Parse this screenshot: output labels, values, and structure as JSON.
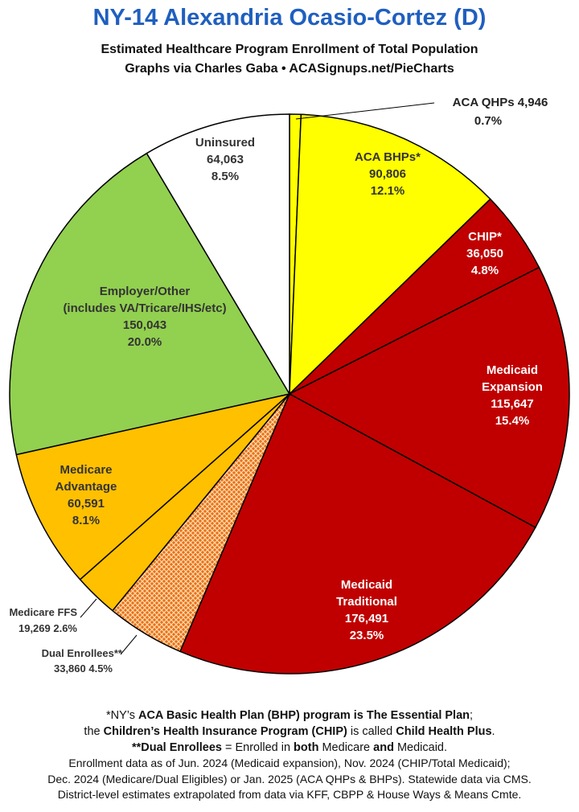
{
  "title": "NY-14 Alexandria Ocasio-Cortez (D)",
  "subtitle_line1": "Estimated Healthcare Program Enrollment of Total Population",
  "subtitle_line2": "Graphs via Charles Gaba  •  ACASignups.net/PieCharts",
  "chart_data": {
    "type": "pie",
    "title": "NY-14 Alexandria Ocasio-Cortez (D)",
    "slices": [
      {
        "label": "ACA QHPs",
        "value": 4946,
        "value_text": "4,946",
        "percent": "0.7%",
        "color": "#ffff00"
      },
      {
        "label": "ACA BHPs*",
        "value": 90806,
        "value_text": "90,806",
        "percent": "12.1%",
        "color": "#ffff00"
      },
      {
        "label": "CHIP*",
        "value": 36050,
        "value_text": "36,050",
        "percent": "4.8%",
        "color": "#c00000"
      },
      {
        "label": "Medicaid Expansion",
        "value": 115647,
        "value_text": "115,647",
        "percent": "15.4%",
        "color": "#c00000"
      },
      {
        "label": "Medicaid Traditional",
        "value": 176491,
        "value_text": "176,491",
        "percent": "23.5%",
        "color": "#c00000"
      },
      {
        "label": "Dual Enrollees**",
        "value": 33860,
        "value_text": "33,860",
        "percent": "4.5%",
        "color": "#e8701a",
        "pattern": "crosshatch"
      },
      {
        "label": "Medicare FFS",
        "value": 19269,
        "value_text": "19,269",
        "percent": "2.6%",
        "color": "#ffc000"
      },
      {
        "label": "Medicare Advantage",
        "value": 60591,
        "value_text": "60,591",
        "percent": "8.1%",
        "color": "#ffc000"
      },
      {
        "label": "Employer/Other (includes VA/Tricare/IHS/etc)",
        "value": 150043,
        "value_text": "150,043",
        "percent": "20.0%",
        "color": "#92d050"
      },
      {
        "label": "Uninsured",
        "value": 64063,
        "value_text": "64,063",
        "percent": "8.5%",
        "color": "#ffffff"
      }
    ]
  },
  "labels": {
    "qhp": "ACA QHPs 4,946",
    "qhp_pct": "0.7%",
    "bhp_name": "ACA BHPs*",
    "bhp_val": "90,806",
    "bhp_pct": "12.1%",
    "chip_name": "CHIP*",
    "chip_val": "36,050",
    "chip_pct": "4.8%",
    "mexp_name1": "Medicaid",
    "mexp_name2": "Expansion",
    "mexp_val": "115,647",
    "mexp_pct": "15.4%",
    "mtrad_name1": "Medicaid",
    "mtrad_name2": "Traditional",
    "mtrad_val": "176,491",
    "mtrad_pct": "23.5%",
    "dual_name": "Dual Enrollees**",
    "dual_val": "33,860 4.5%",
    "ffs_name": "Medicare FFS",
    "ffs_val": "19,269 2.6%",
    "mady_name1": "Medicare",
    "mady_name2": "Advantage",
    "mady_val": "60,591",
    "mady_pct": "8.1%",
    "emp_name1": "Employer/Other",
    "emp_name2": "(includes VA/Tricare/IHS/etc)",
    "emp_val": "150,043",
    "emp_pct": "20.0%",
    "unins_name": "Uninsured",
    "unins_val": "64,063",
    "unins_pct": "8.5%"
  },
  "footnotes": {
    "f1a": "*NY’s ",
    "f1b": "ACA Basic Health Plan (BHP) program is The Essential Plan",
    "f1c": ";",
    "f2a": "the ",
    "f2b": "Children’s Health Insurance Program (CHIP)",
    "f2c": " is called ",
    "f2d": "Child Health Plus",
    "f2e": ".",
    "f3a": "**Dual Enrollees",
    "f3b": " = Enrolled in ",
    "f3c": "both",
    "f3d": " Medicare ",
    "f3e": "and",
    "f3f": " Medicaid.",
    "s1": "Enrollment data as of Jun. 2024 (Medicaid expansion), Nov. 2024 (CHIP/Total Medicaid);",
    "s2": "Dec. 2024 (Medicare/Dual Eligibles) or Jan. 2025 (ACA QHPs & BHPs). Statewide data via CMS.",
    "s3": "District-level estimates extrapolated from data via KFF, CBPP & House Ways & Means Cmte."
  }
}
